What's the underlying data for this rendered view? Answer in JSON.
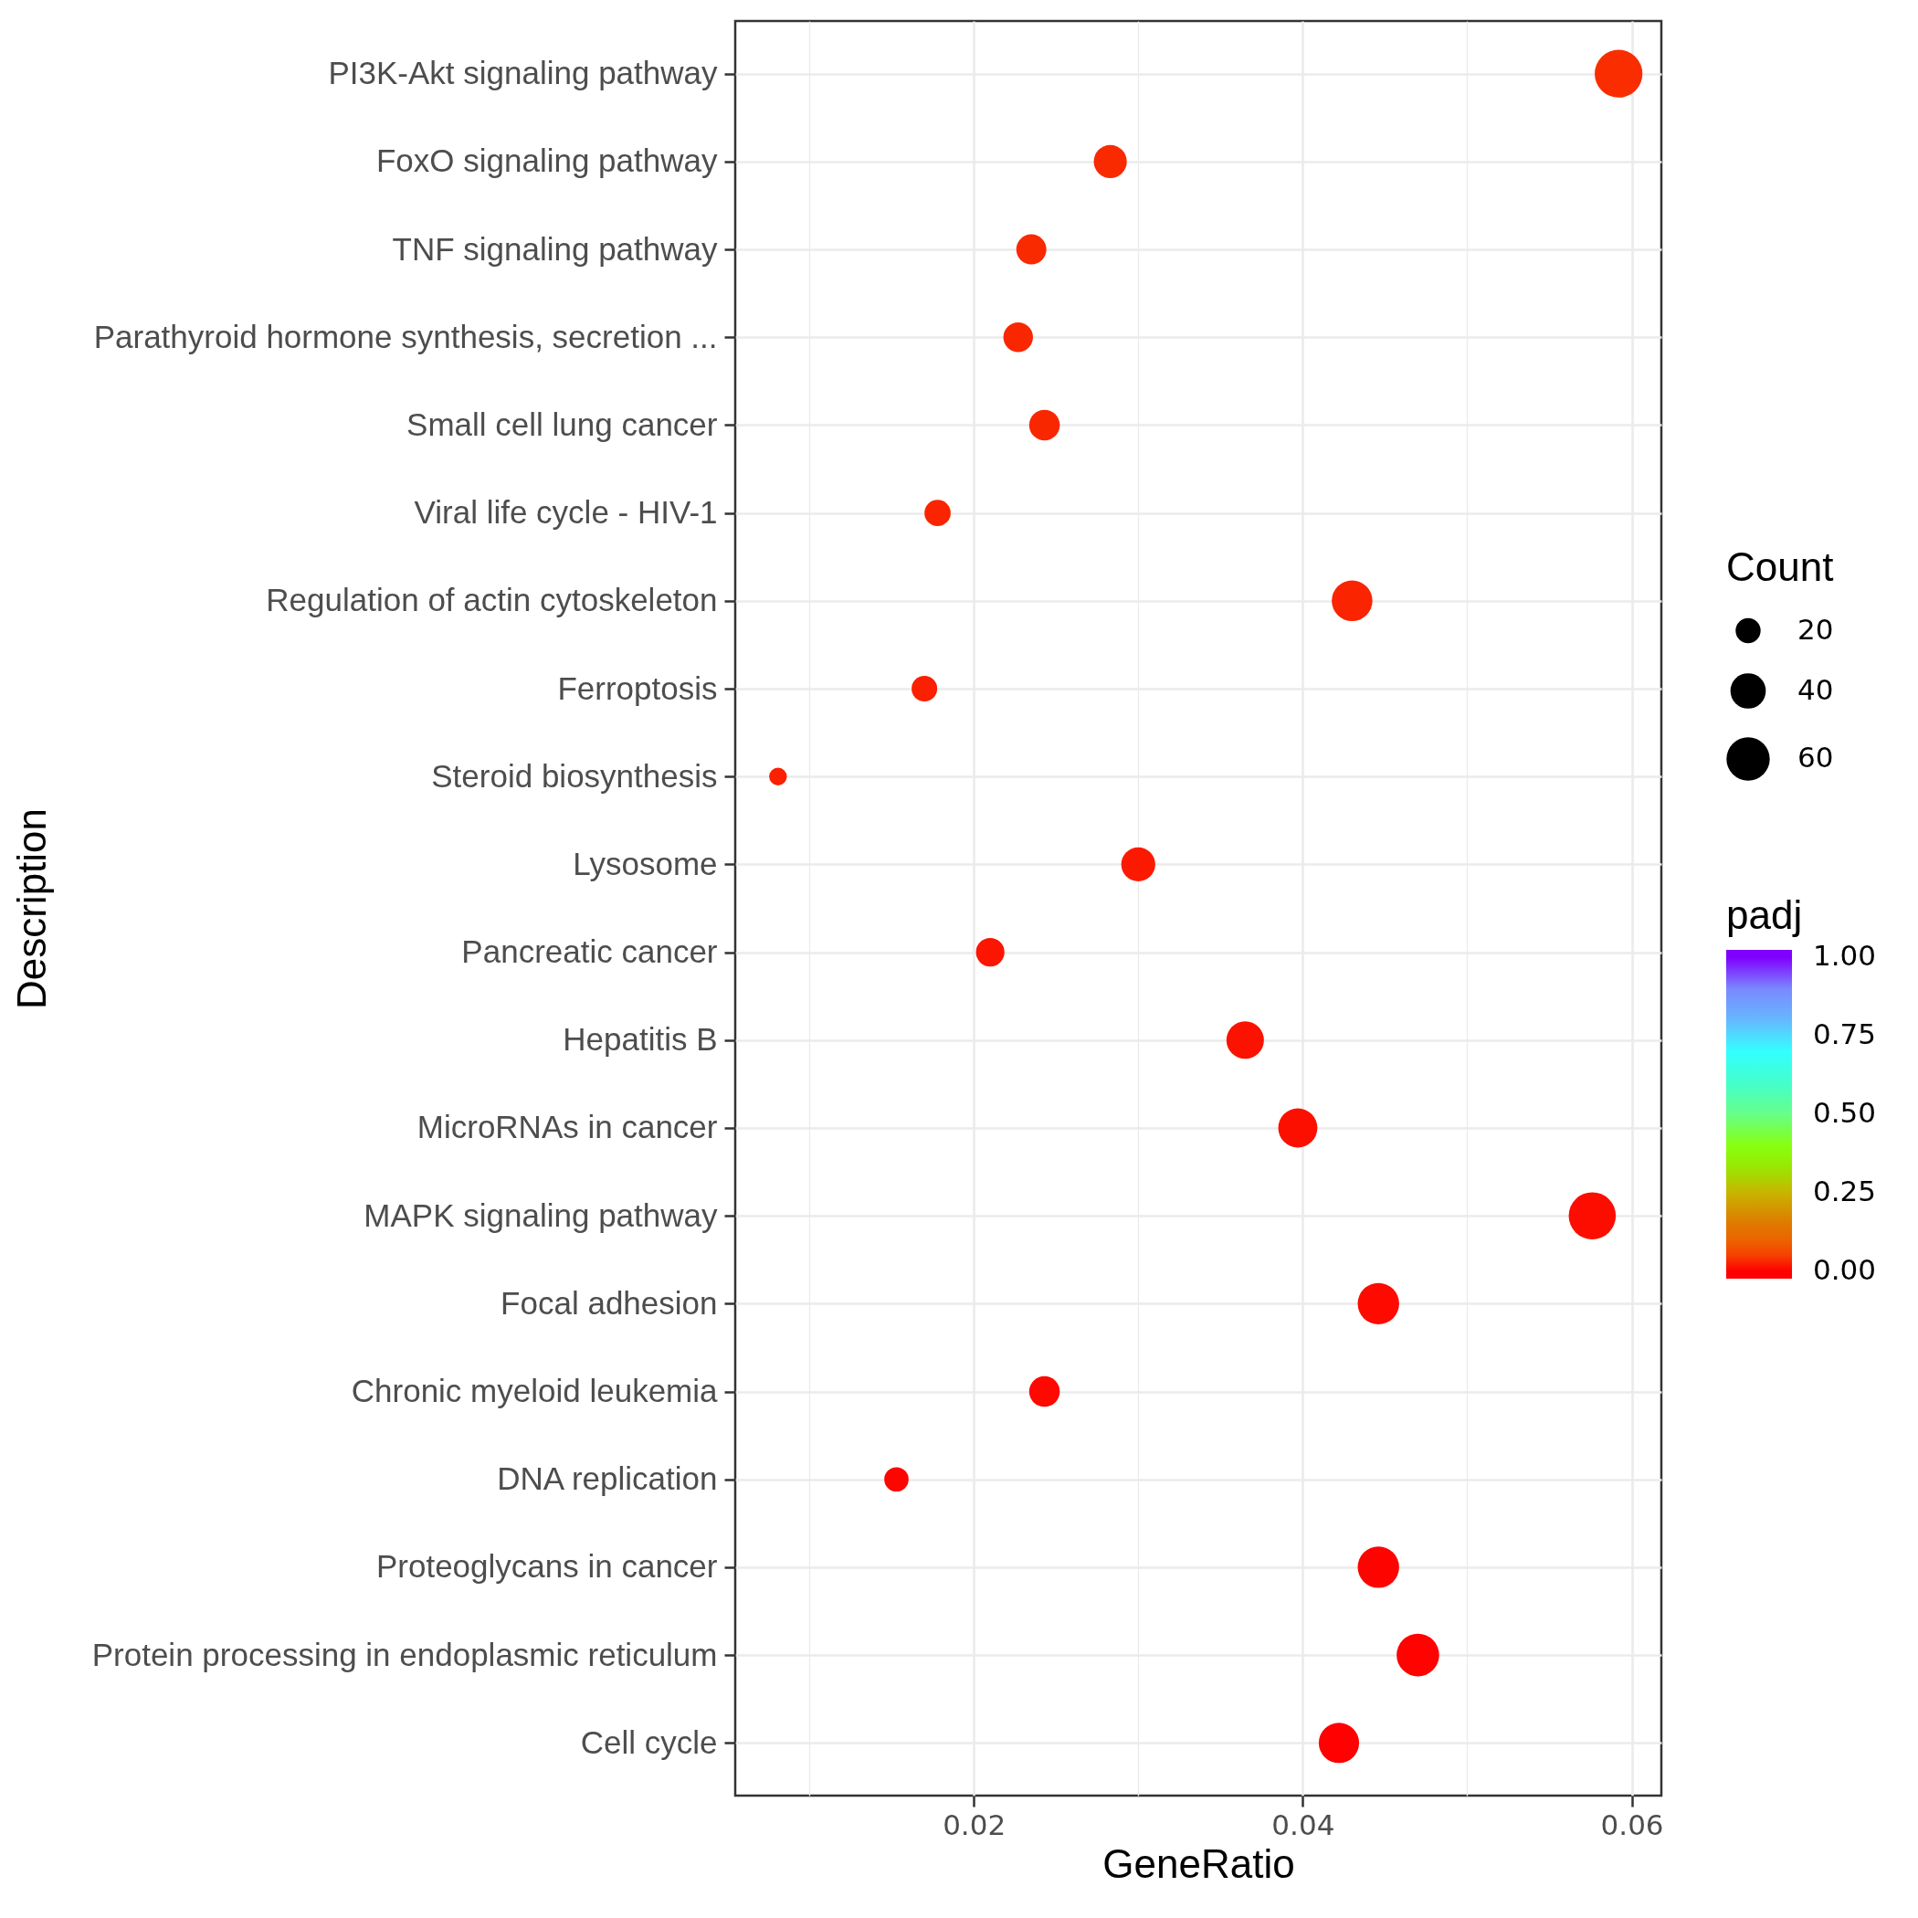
{
  "chart_data": {
    "type": "bubble",
    "orientation": "horizontal",
    "xlabel": "GeneRatio",
    "ylabel": "Description",
    "legend_title": "Count",
    "clabel": "padj",
    "categories": [
      "PI3K-Akt signaling pathway",
      "FoxO signaling pathway",
      "TNF signaling pathway",
      "Parathyroid hormone synthesis, secretion ...",
      "Small cell lung cancer",
      "Viral life cycle - HIV-1",
      "Regulation of actin cytoskeleton",
      "Ferroptosis",
      "Steroid biosynthesis",
      "Lysosome",
      "Pancreatic cancer",
      "Hepatitis B",
      "MicroRNAs in cancer",
      "MAPK signaling pathway",
      "Focal adhesion",
      "Chronic myeloid leukemia",
      "DNA replication",
      "Proteoglycans in cancer",
      "Protein processing in endoplasmic reticulum",
      "Cell cycle"
    ],
    "values": [
      0.0592,
      0.0283,
      0.0235,
      0.0227,
      0.0243,
      0.0178,
      0.043,
      0.017,
      0.0081,
      0.03,
      0.021,
      0.0365,
      0.0397,
      0.0576,
      0.0446,
      0.0243,
      0.0153,
      0.0446,
      0.047,
      0.0422
    ],
    "sizes": [
      73,
      35,
      29,
      28,
      30,
      22,
      53,
      21,
      10,
      37,
      26,
      45,
      49,
      71,
      55,
      30,
      19,
      55,
      58,
      52
    ],
    "size_legend": [
      20,
      40,
      60
    ],
    "cvalues": [
      0.035,
      0.033,
      0.032,
      0.03,
      0.03,
      0.028,
      0.028,
      0.025,
      0.025,
      0.02,
      0.016,
      0.014,
      0.012,
      0.01,
      0.008,
      0.006,
      0.005,
      0.003,
      0.002,
      0.001
    ],
    "clim": [
      0,
      1
    ],
    "cticks": [
      {
        "value": 0,
        "label": "0.00"
      },
      0.25,
      {
        "value": 0.5,
        "label": "0.50"
      },
      0.75,
      {
        "value": 1,
        "label": "1.00"
      }
    ],
    "xlim": [
      0.0055,
      0.0618
    ],
    "xticks": [
      {
        "value": 0.01,
        "label": null
      },
      0.02,
      {
        "value": 0.03,
        "label": null
      },
      0.04,
      {
        "value": 0.05,
        "label": null
      },
      0.06
    ],
    "grid": true
  }
}
